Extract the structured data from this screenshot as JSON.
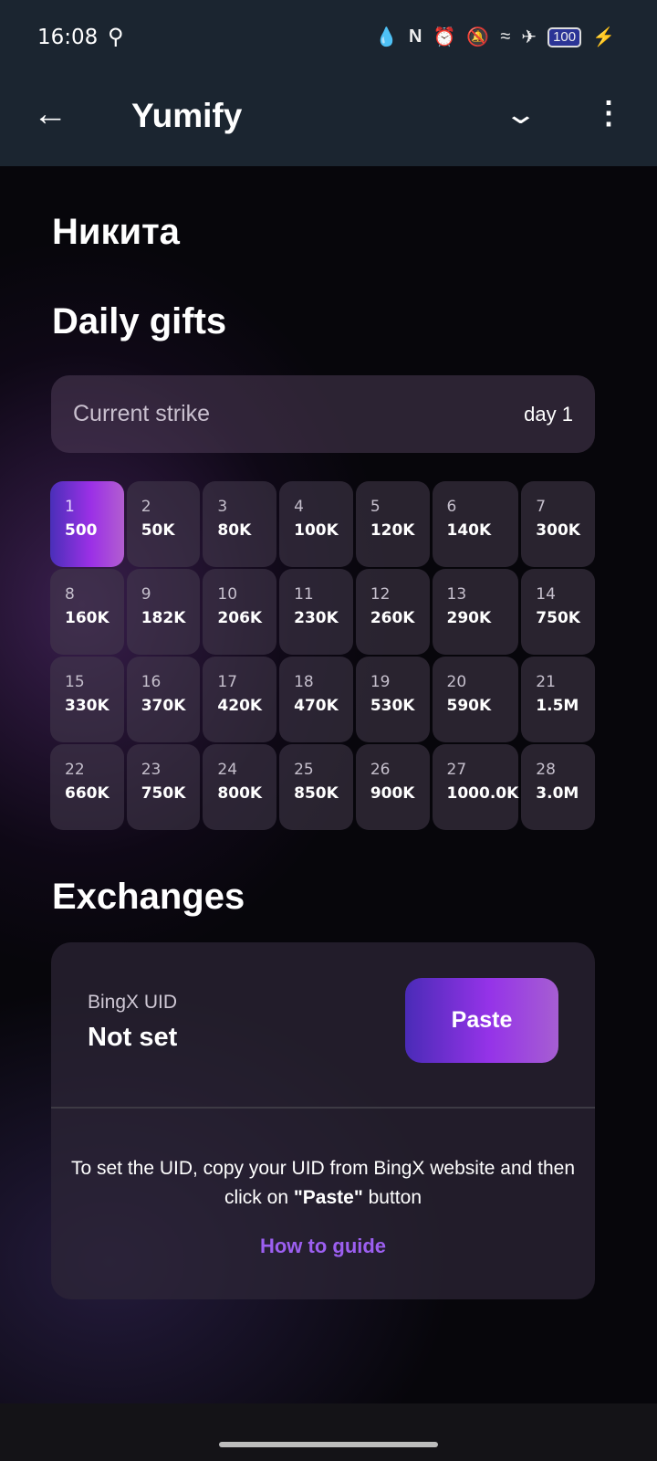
{
  "status_bar": {
    "time": "16:08",
    "battery": "100",
    "icons": [
      "search-icon",
      "data-saver-icon",
      "nfc-icon",
      "alarm-icon",
      "bell-off-icon",
      "wifi-icon",
      "airplane-icon",
      "battery-icon",
      "charging-icon"
    ]
  },
  "app_bar": {
    "title": "Yumify"
  },
  "user": {
    "name": "Никита"
  },
  "daily": {
    "title": "Daily gifts",
    "strike_label": "Current strike",
    "strike_value": "day 1",
    "days": [
      {
        "d": "1",
        "v": "500",
        "active": true
      },
      {
        "d": "2",
        "v": "50K"
      },
      {
        "d": "3",
        "v": "80K"
      },
      {
        "d": "4",
        "v": "100K"
      },
      {
        "d": "5",
        "v": "120K"
      },
      {
        "d": "6",
        "v": "140K"
      },
      {
        "d": "7",
        "v": "300K"
      },
      {
        "d": "8",
        "v": "160K"
      },
      {
        "d": "9",
        "v": "182K"
      },
      {
        "d": "10",
        "v": "206K"
      },
      {
        "d": "11",
        "v": "230K"
      },
      {
        "d": "12",
        "v": "260K"
      },
      {
        "d": "13",
        "v": "290K"
      },
      {
        "d": "14",
        "v": "750K"
      },
      {
        "d": "15",
        "v": "330K"
      },
      {
        "d": "16",
        "v": "370K"
      },
      {
        "d": "17",
        "v": "420K"
      },
      {
        "d": "18",
        "v": "470K"
      },
      {
        "d": "19",
        "v": "530K"
      },
      {
        "d": "20",
        "v": "590K"
      },
      {
        "d": "21",
        "v": "1.5M"
      },
      {
        "d": "22",
        "v": "660K"
      },
      {
        "d": "23",
        "v": "750K"
      },
      {
        "d": "24",
        "v": "800K"
      },
      {
        "d": "25",
        "v": "850K"
      },
      {
        "d": "26",
        "v": "900K"
      },
      {
        "d": "27",
        "v": "1000.0K"
      },
      {
        "d": "28",
        "v": "3.0M"
      }
    ]
  },
  "exchanges": {
    "title": "Exchanges",
    "uid_label": "BingX UID",
    "uid_value": "Not set",
    "paste_label": "Paste",
    "info_before": "To set the UID, copy your UID from BingX website and then click on ",
    "info_bold": "\"Paste\"",
    "info_after": " button",
    "guide_link": "How to guide"
  },
  "colors": {
    "accent": "#9533e8",
    "link": "#9c5ff0",
    "app_bar": "#1b2530"
  }
}
